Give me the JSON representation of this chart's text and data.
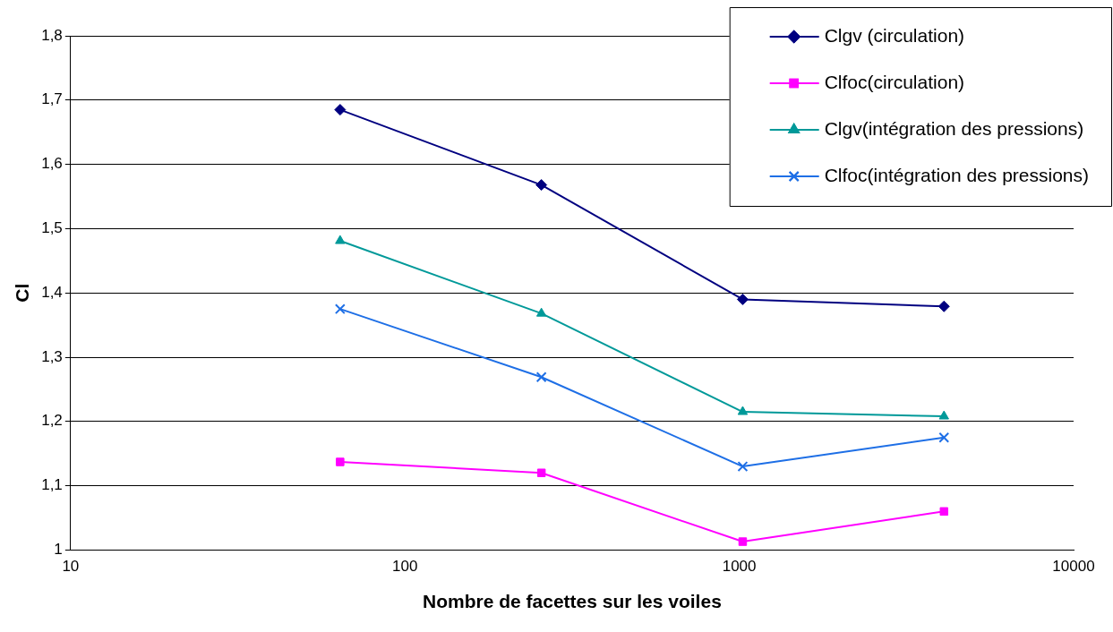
{
  "chart_data": {
    "type": "line",
    "xlabel": "Nombre de facettes sur les voiles",
    "ylabel": "Cl",
    "log": "x",
    "x": [
      64,
      256,
      1024,
      4096
    ],
    "xlim": [
      10,
      10000
    ],
    "xticks": [
      10,
      100,
      1000,
      10000
    ],
    "ylim": [
      1,
      1.8
    ],
    "yticks": [
      1,
      {
        "value": 1.1,
        "label": "1,1"
      },
      {
        "value": 1.2,
        "label": "1,2"
      },
      {
        "value": 1.3,
        "label": "1,3"
      },
      {
        "value": 1.4,
        "label": "1,4"
      },
      {
        "value": 1.5,
        "label": "1,5"
      },
      {
        "value": 1.6,
        "label": "1,6"
      },
      {
        "value": 1.7,
        "label": "1,7"
      },
      {
        "value": 1.8,
        "label": "1,8"
      }
    ],
    "grid": "y",
    "legend": "top right",
    "line_style": "solid",
    "series": [
      {
        "name": "Clgv (circulation)",
        "color": "#000080",
        "marker": "diamond",
        "values": [
          1.685,
          1.568,
          1.39,
          1.379
        ]
      },
      {
        "name": "Clfoc(circulation)",
        "color": "#ff00ff",
        "marker": "square",
        "values": [
          1.137,
          1.12,
          1.013,
          1.06
        ]
      },
      {
        "name": "Clgv(intégration des pressions)",
        "color": "#009999",
        "marker": "triangle",
        "values": [
          1.481,
          1.368,
          1.215,
          1.208
        ]
      },
      {
        "name": "Clfoc(intégration des pressions)",
        "color": "#1e6fe6",
        "marker": "cross",
        "values": [
          1.375,
          1.269,
          1.13,
          1.175
        ]
      }
    ]
  }
}
